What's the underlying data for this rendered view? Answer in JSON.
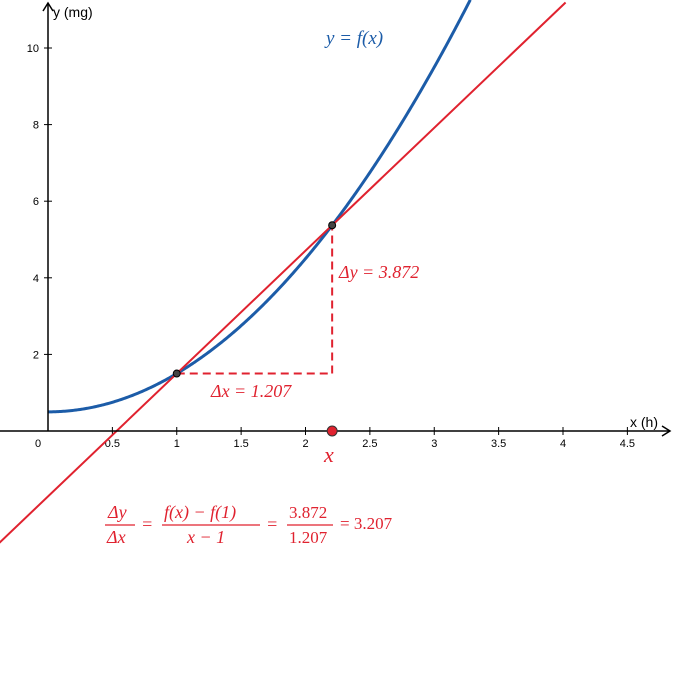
{
  "chart_data": {
    "type": "line",
    "title": "",
    "xlabel": "x (h)",
    "ylabel": "y (mg)",
    "xlim": [
      0,
      4.85
    ],
    "ylim": [
      0,
      11.0
    ],
    "x_ticks": [
      "0",
      "0.5",
      "1",
      "1.5",
      "2",
      "2.5",
      "3",
      "3.5",
      "4",
      "4.5"
    ],
    "y_ticks": [
      "2",
      "4",
      "6",
      "8",
      "10"
    ],
    "series": [
      {
        "name": "y = f(x)",
        "color": "#1c5ca8",
        "points": [
          [
            0,
            0.5
          ],
          [
            0.25,
            0.56
          ],
          [
            0.5,
            0.75
          ],
          [
            0.75,
            1.06
          ],
          [
            1,
            1.5
          ],
          [
            1.25,
            2.06
          ],
          [
            1.5,
            2.75
          ],
          [
            1.75,
            3.56
          ],
          [
            2,
            4.5
          ],
          [
            2.207,
            5.372
          ],
          [
            2.5,
            6.75
          ],
          [
            2.75,
            8.06
          ],
          [
            3,
            9.5
          ],
          [
            3.25,
            11.06
          ]
        ]
      },
      {
        "name": "",
        "color": "#e0222f",
        "points": [
          [
            0,
            -1.707
          ],
          [
            1,
            1.5
          ],
          [
            2.207,
            5.372
          ],
          [
            4.0,
            11.12
          ]
        ]
      }
    ],
    "points": [
      {
        "x": 1,
        "y": 1.5
      },
      {
        "x": 2.207,
        "y": 5.372
      }
    ],
    "slider_x": 2.207
  },
  "labels": {
    "func": "y = f(x)",
    "dx": "Δx = 1.207",
    "dy": "Δy = 3.872",
    "x_var": "x",
    "frac1_num": "Δy",
    "frac1_den": "Δx",
    "eq1": "=",
    "frac2_num": "f(x) − f(1)",
    "frac2_den": "x − 1",
    "eq2": "=",
    "frac3_num": "3.872",
    "frac3_den": "1.207",
    "result": "= 3.207"
  },
  "colors": {
    "curve": "#1c5ca8",
    "secant": "#e0222f",
    "axis": "#000000"
  }
}
